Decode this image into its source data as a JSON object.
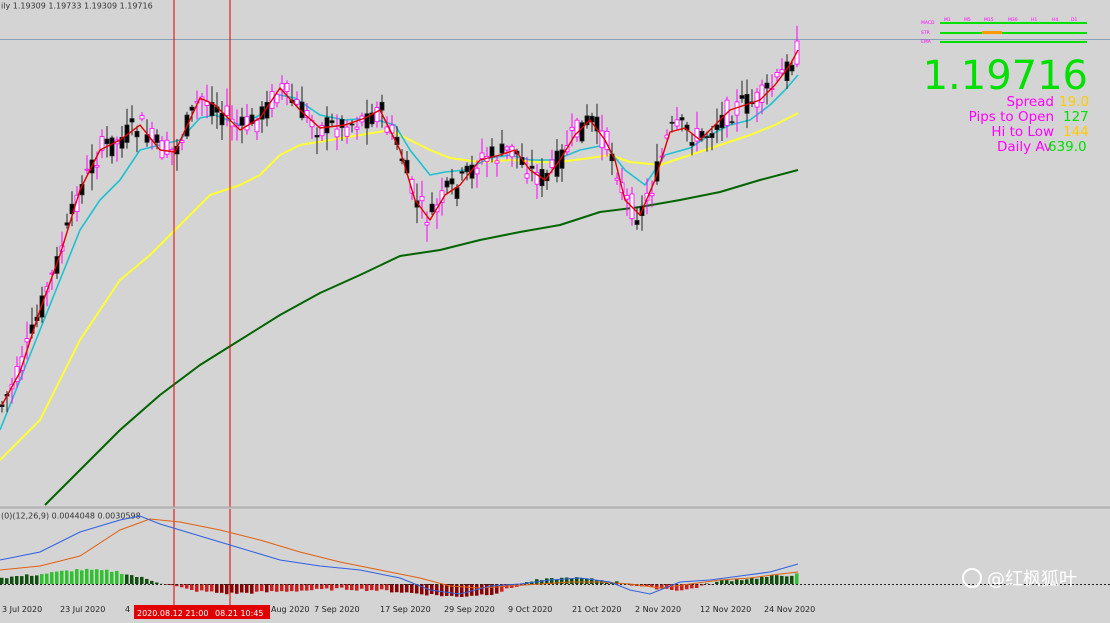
{
  "chart_data": {
    "type": "candlestick",
    "title": "ily 1.19309 1.19733 1.19309 1.19716",
    "x_dates": [
      "3 Jul 2020",
      "23 Jul 2020",
      "4",
      "Aug 2020",
      "7 Sep 2020",
      "17 Sep 2020",
      "29 Sep 2020",
      "9 Oct 2020",
      "21 Oct 2020",
      "2 Nov 2020",
      "12 Nov 2020",
      "24 Nov 2020"
    ],
    "markers": [
      "2020.08.12 21:00",
      "08.21 10:45"
    ],
    "ohlc_summary": {
      "first": [
        1.13,
        1.132,
        1.125,
        1.131
      ],
      "last": [
        1.19309,
        1.19733,
        1.19309,
        1.19716
      ]
    },
    "moving_averages": [
      {
        "color": "#e00000",
        "period_hint": "fast"
      },
      {
        "color": "#20c0d0",
        "period_hint": "medium"
      },
      {
        "color": "#ffff33",
        "period_hint": "slow"
      },
      {
        "color": "#006400",
        "period_hint": "long"
      }
    ],
    "macd": {
      "label": "(0)(12,26,9) 0.0044048 0.0030598",
      "histogram_hint": [
        0.002,
        0.003,
        0.0045,
        0.004,
        0.001,
        -0.002,
        -0.003,
        -0.0025,
        -0.002,
        -0.0015,
        -0.002,
        -0.003,
        -0.004,
        -0.003,
        0.001,
        0.002,
        0.001,
        -0.001,
        -0.002,
        0.001,
        0.002,
        0.003
      ]
    },
    "colors": {
      "background": "#d4d4d4",
      "bull": "#ffffff",
      "bear": "#000000",
      "marker_line": "#e00000"
    }
  },
  "dashboard": {
    "timeframes": [
      "M1",
      "M5",
      "M15",
      "M30",
      "H1",
      "H4",
      "D1"
    ],
    "rows": [
      "MACD",
      "STR",
      "EMA"
    ],
    "price": "1.19716",
    "info": [
      {
        "label": "Spread",
        "value": "19.0",
        "label_color": "#ff00ff",
        "value_color": "#ffcc00"
      },
      {
        "label": "Pips to Open",
        "value": "127",
        "label_color": "#ff00ff",
        "value_color": "#00e000"
      },
      {
        "label": "Hi to Low",
        "value": "144",
        "label_color": "#ff00ff",
        "value_color": "#ffcc00"
      },
      {
        "label": "Daily Av",
        "value": "639.0",
        "label_color": "#ff00ff",
        "value_color": "#00e000"
      }
    ]
  },
  "watermark": "@红枫狐叶"
}
